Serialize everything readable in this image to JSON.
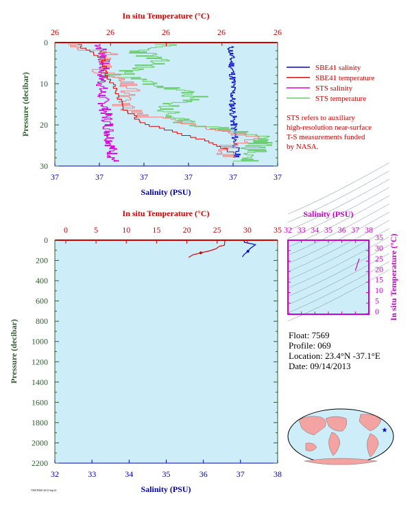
{
  "colors": {
    "plot_bg": "#cdeef8",
    "sbe41_salinity": "#0000cc",
    "sbe41_temperature": "#dd0000",
    "sts_salinity": "#dd00dd",
    "sts_temperature": "#66cc66",
    "pink_temperature": "#f08080",
    "pressure_axis": "#2e5a2e",
    "temp_axis": "#cc0000",
    "sal_axis": "#0000aa",
    "ts_axis": "#cc00cc"
  },
  "top_panel": {
    "top_axis_title": "In situ Temperature (°C)",
    "bottom_axis_title": "Salinity (PSU)",
    "left_axis_title": "Pressure (decibar)",
    "top_ticks": [
      "26",
      "26",
      "26",
      "26",
      "26"
    ],
    "bottom_ticks": [
      "37",
      "37",
      "37",
      "37",
      "37",
      "37"
    ],
    "left_ticks": [
      "0",
      "10",
      "20",
      "30"
    ]
  },
  "legend": {
    "items": [
      {
        "label": "SBE41 salinity",
        "color": "#0000cc"
      },
      {
        "label": "SBE41 temperature",
        "color": "#dd0000"
      },
      {
        "label": "STS salinity",
        "color": "#dd00dd"
      },
      {
        "label": "STS temperature",
        "color": "#66cc66"
      }
    ],
    "note_lines": [
      "STS refers to auxiliary",
      "high-resolution near-surface",
      "T-S measurements funded",
      "by NASA."
    ]
  },
  "bottom_panel": {
    "top_axis_title": "In situ Temperature (°C)",
    "bottom_axis_title": "Salinity (PSU)",
    "left_axis_title": "Pressure (decibar)",
    "top_ticks": [
      "0",
      "5",
      "10",
      "15",
      "20",
      "25",
      "30",
      "35"
    ],
    "bottom_ticks": [
      "32",
      "33",
      "34",
      "35",
      "36",
      "37",
      "38"
    ],
    "left_ticks": [
      "0",
      "200",
      "400",
      "600",
      "800",
      "1000",
      "1200",
      "1400",
      "1600",
      "1800",
      "2000",
      "2200"
    ]
  },
  "ts_panel": {
    "top_axis_title": "Salinity (PSU)",
    "right_axis_title": "In situ Temperature (°C)",
    "top_ticks": [
      "32",
      "33",
      "34",
      "35",
      "36",
      "37",
      "38"
    ],
    "right_ticks": [
      "0",
      "5",
      "10",
      "15",
      "20",
      "25",
      "30",
      "35"
    ]
  },
  "info": {
    "float": "Float:  7569",
    "profile": "Profile:  069",
    "location": "Location:  23.4°N  -37.1°E",
    "date": "Date:  09/14/2013"
  },
  "footer_id": "7569 P069 2013 Sep14",
  "chart_data": [
    {
      "type": "line",
      "panel": "near-surface",
      "x_top_label": "In situ Temperature (°C)",
      "x_bottom_label": "Salinity (PSU)",
      "ylabel": "Pressure (decibar)",
      "ylim": [
        30,
        0
      ],
      "series": [
        {
          "name": "SBE41 salinity",
          "x": [
            37.46,
            37.47,
            37.46,
            37.47,
            37.46,
            37.47,
            37.46,
            37.47
          ],
          "y": [
            3,
            6,
            10,
            13,
            17,
            20,
            24,
            27
          ]
        },
        {
          "name": "SBE41 temperature",
          "x": [
            26.02,
            26.05,
            26.12,
            26.2,
            26.32,
            26.36,
            26.4
          ],
          "y": [
            0.5,
            6,
            9,
            14,
            19,
            23,
            27
          ]
        },
        {
          "name": "STS salinity",
          "x": [
            36.82,
            36.85,
            36.84,
            36.86,
            36.85,
            36.87,
            36.84,
            36.88,
            36.86,
            36.9
          ],
          "y": [
            1,
            3,
            6,
            9,
            12,
            15,
            18,
            21,
            24,
            27
          ]
        },
        {
          "name": "STS temperature",
          "x": [
            26.07,
            26.12,
            26.18,
            26.24,
            26.3,
            26.34,
            26.37,
            26.36
          ],
          "y": [
            0.5,
            3,
            6,
            10,
            15,
            19,
            23,
            27
          ]
        }
      ]
    },
    {
      "type": "line",
      "panel": "full-depth",
      "x_top_label": "In situ Temperature (°C)",
      "x_bottom_label": "Salinity (PSU)",
      "ylabel": "Pressure (decibar)",
      "xlim_temperature": [
        0,
        35
      ],
      "xlim_salinity": [
        32,
        38
      ],
      "ylim": [
        2200,
        0
      ],
      "series": [
        {
          "name": "SBE41 temperature",
          "x": [
            26.3,
            26.2,
            25.4,
            24.8,
            23.8,
            22.3,
            21.0,
            20.3
          ],
          "y": [
            0,
            50,
            60,
            85,
            105,
            125,
            145,
            170
          ]
        },
        {
          "name": "SBE41 salinity",
          "x": [
            37.1,
            37.1,
            37.4,
            37.25,
            37.2,
            37.1,
            37.05
          ],
          "y": [
            0,
            20,
            45,
            85,
            110,
            140,
            165
          ]
        }
      ]
    },
    {
      "type": "line",
      "panel": "T-S",
      "xlabel": "Salinity (PSU)",
      "ylabel": "In situ Temperature (°C)",
      "xlim": [
        32,
        38
      ],
      "ylim": [
        0,
        35
      ],
      "series": [
        {
          "name": "SBE41 T-S",
          "x": [
            37.0,
            37.05,
            37.1,
            37.2,
            37.3
          ],
          "y": [
            20.5,
            21.5,
            22.5,
            24.5,
            26.2
          ]
        }
      ]
    }
  ]
}
